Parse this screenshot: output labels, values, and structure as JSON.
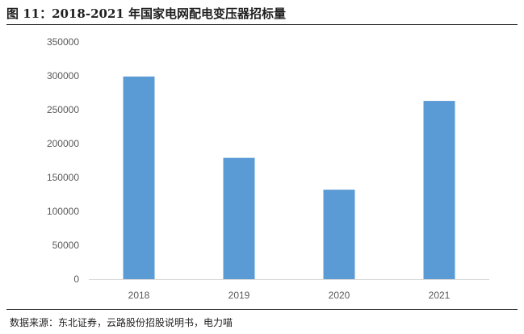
{
  "header": {
    "title": "图 11：2018-2021 年国家电网配电变压器招标量"
  },
  "footer": {
    "source": "数据来源：东北证券，云路股份招股说明书，电力喵"
  },
  "chart_data": {
    "type": "bar",
    "categories": [
      "2018",
      "2019",
      "2020",
      "2021"
    ],
    "values": [
      299000,
      179000,
      132000,
      263000
    ],
    "ylim": [
      0,
      350000
    ],
    "yticks": [
      "0",
      "50000",
      "100000",
      "150000",
      "200000",
      "250000",
      "300000",
      "350000"
    ],
    "bar_color": "#5B9BD5",
    "grid": false,
    "legend": "none"
  }
}
